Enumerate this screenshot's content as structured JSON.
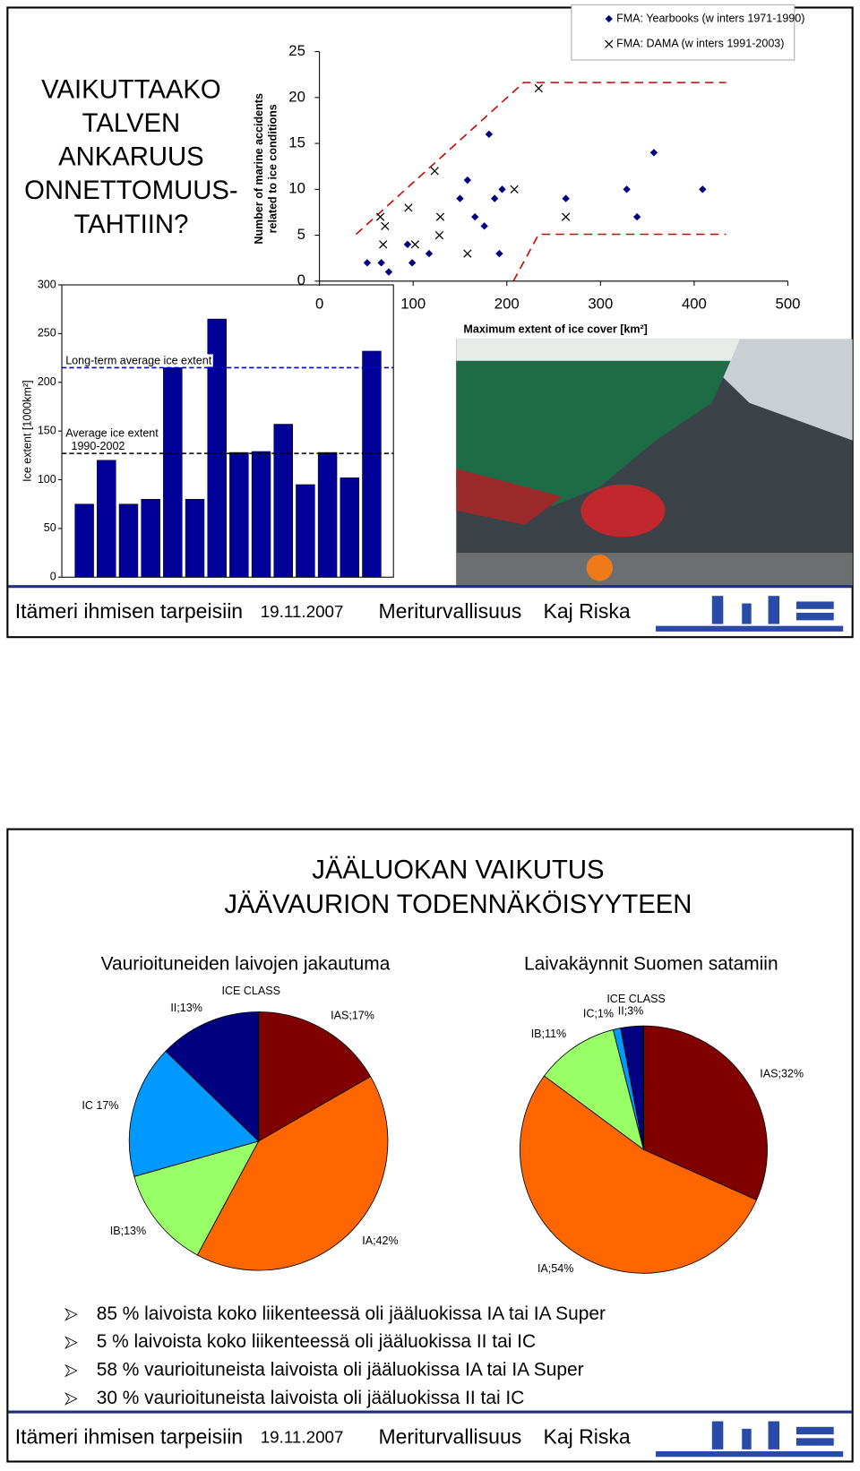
{
  "slides": [
    {
      "title": [
        "VAIKUTTAAKO",
        "TALVEN",
        "ANKARUUS",
        "ONNETTOMUUS-",
        "TAHTIIN?"
      ],
      "footer": {
        "left": "Itämeri ihmisen tarpeisiin",
        "date": "19.11.2007",
        "topic": "Meriturvallisuus",
        "author": "Kaj Riska"
      }
    },
    {
      "title": [
        "JÄÄLUOKAN VAIKUTUS",
        "JÄÄVAURION TODENNÄKÖISYYTEEN"
      ],
      "bullets": [
        "85 % laivoista koko liikenteessä oli jääluokissa IA tai IA Super",
        "5 % laivoista koko liikenteessä oli jääluokissa II tai IC",
        "58 % vaurioituneista laivoista oli jääluokissa IA tai IA Super",
        "30 % vaurioituneista laivoista oli jääluokissa II tai IC"
      ],
      "footer": {
        "left": "Itämeri ihmisen tarpeisiin",
        "date": "19.11.2007",
        "topic": "Meriturvallisuus",
        "author": "Kaj Riska"
      }
    }
  ],
  "chart_data": [
    {
      "type": "scatter",
      "xlabel": "Maximum extent of ice cover [km²]",
      "ylabel": [
        "Number of marine accidents",
        "related to ice conditions"
      ],
      "xlim": [
        0,
        500
      ],
      "xticks": [
        0,
        100,
        200,
        300,
        400,
        500
      ],
      "ylim": [
        0,
        25
      ],
      "yticks": [
        0,
        5,
        10,
        15,
        20,
        25
      ],
      "series": [
        {
          "name": "FMA: Yearbooks (w inters 1971-1990)",
          "color": "#000080",
          "marker": "diamond",
          "x": [
            51,
            66,
            74,
            94,
            99,
            117,
            150,
            158,
            166,
            176,
            181,
            187,
            192,
            195,
            263,
            328,
            339,
            357,
            409
          ],
          "values": [
            2,
            2,
            1,
            4,
            2,
            3,
            9,
            11,
            7,
            6,
            16,
            9,
            3,
            10,
            9,
            10,
            7,
            14,
            10
          ]
        },
        {
          "name": "FMA: DAMA (w inters 1991-2003)",
          "color": "#000000",
          "marker": "x",
          "x": [
            65,
            70,
            68,
            95,
            102,
            123,
            129,
            128,
            158,
            208,
            234,
            263
          ],
          "values": [
            7,
            6,
            4,
            8,
            4,
            12,
            7,
            5,
            3,
            10,
            21,
            7
          ]
        }
      ]
    },
    {
      "type": "bar",
      "ylabel": "Ice extent [1000km²]",
      "ylim": [
        0,
        300
      ],
      "yticks": [
        0,
        50,
        100,
        150,
        200,
        250,
        300
      ],
      "color": "#000099",
      "values": [
        75,
        120,
        75,
        80,
        215,
        80,
        265,
        128,
        129,
        157,
        95,
        128,
        102,
        232
      ],
      "reference_lines": [
        {
          "value": 215,
          "label": [
            "Long-term average ice extent"
          ],
          "color": "#0000cc"
        },
        {
          "value": 127,
          "label": [
            "Average ice extent",
            "1990-2002"
          ],
          "color": "#000000"
        }
      ]
    },
    {
      "type": "pie",
      "title": "Vaurioituneiden laivojen jakautuma",
      "subtitle": "ICE CLASS",
      "values": [
        17,
        42,
        13,
        17,
        13
      ],
      "value_labels": [
        "IAS;17%",
        "IA;42%",
        "IB;13%",
        "IC 17%",
        "II;13%"
      ],
      "colors": [
        "#800000",
        "#ff6600",
        "#99ff66",
        "#0099ff",
        "#000080"
      ]
    },
    {
      "type": "pie",
      "title": "Laivakäynnit Suomen satamiin",
      "subtitle": "ICE CLASS",
      "values": [
        32,
        54,
        11,
        1,
        3
      ],
      "value_labels": [
        "IAS;32%",
        "IA;54%",
        "IB;11%",
        "IC;1%",
        "II;3%"
      ],
      "colors": [
        "#800000",
        "#ff6600",
        "#99ff66",
        "#0099ff",
        "#000080"
      ]
    }
  ]
}
